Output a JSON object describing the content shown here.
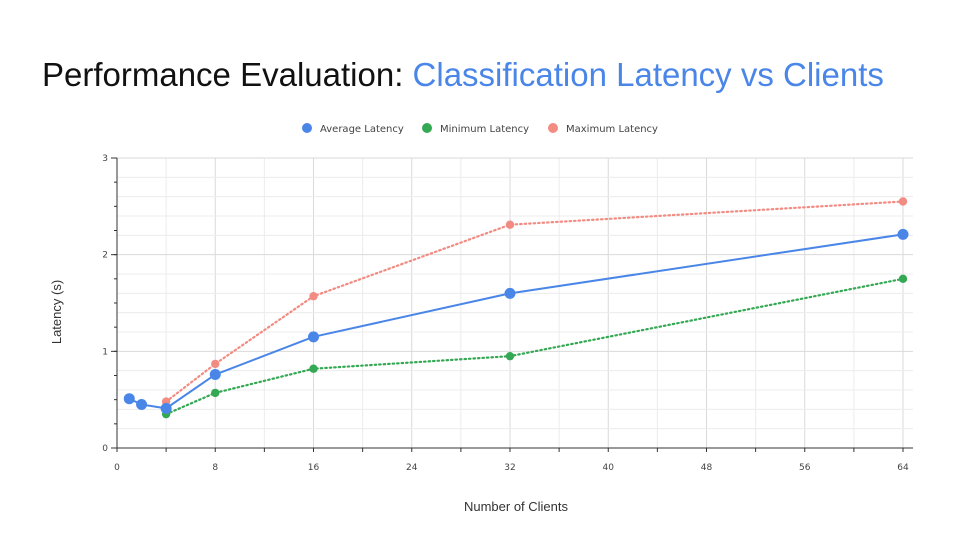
{
  "slide": {
    "title_prefix": "Performance Evaluation: ",
    "title_highlight": "Classification Latency vs Clients"
  },
  "chart_data": {
    "type": "line",
    "xlabel": "Number of Clients",
    "ylabel": "Latency (s)",
    "xlim": [
      0,
      64
    ],
    "ylim": [
      0,
      3
    ],
    "x_ticks": [
      0,
      8,
      16,
      24,
      32,
      40,
      48,
      56,
      64
    ],
    "y_ticks": [
      0,
      1,
      2,
      3
    ],
    "grid": true,
    "legend_position": "top",
    "series": [
      {
        "name": "Average Latency",
        "color": "#4a86e8",
        "line_style": "solid",
        "x": [
          1,
          2,
          4,
          8,
          16,
          32,
          64
        ],
        "y": [
          0.51,
          0.45,
          0.41,
          0.76,
          1.15,
          1.6,
          2.21
        ]
      },
      {
        "name": "Minimum Latency",
        "color": "#34a853",
        "line_style": "dotted",
        "x": [
          4,
          8,
          16,
          32,
          64
        ],
        "y": [
          0.35,
          0.57,
          0.82,
          0.95,
          1.75
        ]
      },
      {
        "name": "Maximum Latency",
        "color": "#f28b82",
        "line_style": "dotted",
        "x": [
          4,
          8,
          16,
          32,
          64
        ],
        "y": [
          0.48,
          0.87,
          1.57,
          2.31,
          2.55
        ]
      }
    ]
  }
}
